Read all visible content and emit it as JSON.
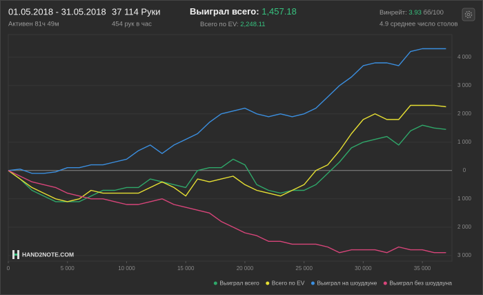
{
  "header": {
    "period": "01.05.2018 - 31.05.2018",
    "active": "Активен 81ч 49м",
    "hands": "37 114 Руки",
    "hands_per_hour": "454 рук в час",
    "won_label": "Выиграл всего:",
    "won_value": "1,457.18",
    "ev_label": "Всего по EV:",
    "ev_value": "2,248.11",
    "winrate_label": "Винрейт:",
    "winrate_value": "3.93",
    "winrate_unit": "бб/100",
    "tables": "4.9 среднее число столов",
    "logo": "HAND2NOTE.COM"
  },
  "chart_data": {
    "type": "line",
    "x": [
      0,
      1000,
      2000,
      3000,
      4000,
      5000,
      6000,
      7000,
      8000,
      9000,
      10000,
      11000,
      12000,
      13000,
      14000,
      15000,
      16000,
      17000,
      18000,
      19000,
      20000,
      21000,
      22000,
      23000,
      24000,
      25000,
      26000,
      27000,
      28000,
      29000,
      30000,
      31000,
      32000,
      33000,
      34000,
      35000,
      36000,
      37000
    ],
    "series": [
      {
        "name": "Выиграл всего",
        "color": "#2fa86a",
        "values": [
          0,
          -300,
          -700,
          -900,
          -1100,
          -1100,
          -1100,
          -900,
          -700,
          -700,
          -600,
          -600,
          -300,
          -400,
          -500,
          -600,
          0,
          100,
          100,
          400,
          200,
          -500,
          -700,
          -800,
          -700,
          -700,
          -500,
          -100,
          300,
          800,
          1000,
          1100,
          1200,
          900,
          1400,
          1600,
          1500,
          1450
        ]
      },
      {
        "name": "Всего по EV",
        "color": "#e6df33",
        "values": [
          0,
          -300,
          -600,
          -800,
          -1000,
          -1100,
          -1000,
          -700,
          -800,
          -800,
          -800,
          -800,
          -600,
          -400,
          -600,
          -900,
          -300,
          -400,
          -300,
          -200,
          -500,
          -700,
          -800,
          -900,
          -700,
          -500,
          0,
          200,
          700,
          1300,
          1800,
          2000,
          1800,
          1800,
          2300,
          2300,
          2300,
          2250
        ]
      },
      {
        "name": "Выиграл на шоудауне",
        "color": "#3b8fe0",
        "values": [
          0,
          50,
          -100,
          -100,
          -50,
          100,
          100,
          200,
          200,
          300,
          400,
          700,
          900,
          600,
          900,
          1100,
          1300,
          1700,
          2000,
          2100,
          2200,
          2000,
          1900,
          2000,
          1900,
          2000,
          2200,
          2600,
          3000,
          3300,
          3700,
          3800,
          3800,
          3700,
          4200,
          4300,
          4300,
          4300
        ]
      },
      {
        "name": "Выиграл без шоудауна",
        "color": "#d8457a",
        "values": [
          0,
          -200,
          -400,
          -500,
          -600,
          -800,
          -900,
          -1000,
          -1000,
          -1100,
          -1200,
          -1200,
          -1100,
          -1000,
          -1200,
          -1300,
          -1400,
          -1500,
          -1800,
          -2000,
          -2200,
          -2300,
          -2500,
          -2500,
          -2600,
          -2600,
          -2600,
          -2700,
          -2900,
          -2800,
          -2800,
          -2800,
          -2900,
          -2700,
          -2800,
          -2800,
          -2900,
          -2900
        ]
      }
    ],
    "xlim": [
      0,
      37500
    ],
    "ylim": [
      -3200,
      4800
    ],
    "xticks": [
      0,
      {
        "value": 5000,
        "label": "5 000"
      },
      {
        "value": 10000,
        "label": "10 000"
      },
      {
        "value": 15000,
        "label": "15 000"
      },
      {
        "value": 20000,
        "label": "20 000"
      },
      {
        "value": 25000,
        "label": "25 000"
      },
      {
        "value": 30000,
        "label": "30 000"
      },
      {
        "value": 35000,
        "label": "35 000"
      }
    ],
    "yticks": [
      {
        "value": 4000,
        "label": "4 000"
      },
      {
        "value": 3000,
        "label": "3 000"
      },
      {
        "value": 2000,
        "label": "2 000"
      },
      {
        "value": 1000,
        "label": "1 000"
      },
      0,
      {
        "value": -1000,
        "label": "1 000"
      },
      {
        "value": -2000,
        "label": "2 000"
      },
      {
        "value": -3000,
        "label": "3 000"
      }
    ],
    "grid": true
  }
}
